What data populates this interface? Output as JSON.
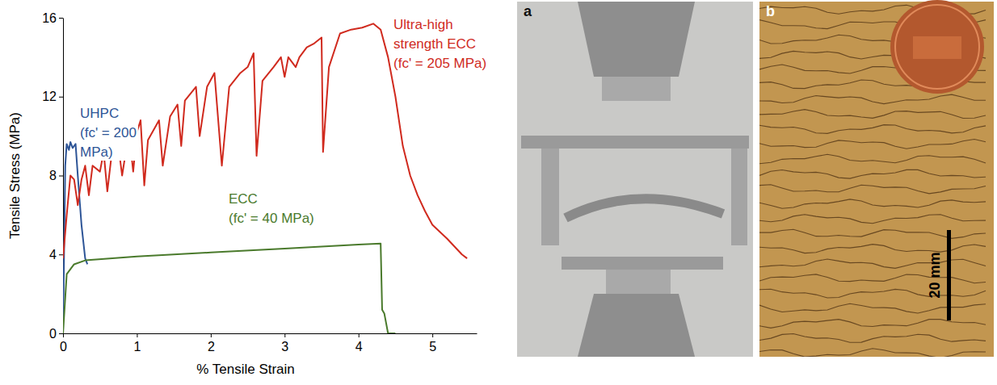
{
  "chart_data": {
    "type": "line",
    "x_label": "% Tensile Strain",
    "y_label": "Tensile Stress (MPa)",
    "xlim": [
      0,
      5.6
    ],
    "xticks": [
      0,
      1,
      2,
      3,
      4,
      5
    ],
    "ylim": [
      0,
      16
    ],
    "yticks": [
      0,
      4,
      8,
      12,
      16
    ],
    "series": [
      {
        "label": [
          "UHPC",
          "(fc' = 200",
          "MPa)"
        ],
        "color": "#2e5597",
        "x": [
          0,
          0.03,
          0.05,
          0.08,
          0.1,
          0.13,
          0.17,
          0.2,
          0.25,
          0.3,
          0.33
        ],
        "values": [
          0,
          8.5,
          9.6,
          9.3,
          9.7,
          9.4,
          9.6,
          8,
          5.5,
          3.8,
          3.5
        ]
      },
      {
        "label": [
          "ECC",
          "(fc' = 40 MPa)"
        ],
        "color": "#4a7a2c",
        "x": [
          0,
          0.05,
          0.15,
          0.3,
          1,
          2,
          3,
          4,
          4.3,
          4.32,
          4.35,
          4.4,
          4.5
        ],
        "values": [
          0,
          3,
          3.5,
          3.7,
          3.9,
          4.1,
          4.3,
          4.5,
          4.55,
          1.2,
          1,
          0,
          0
        ]
      },
      {
        "label": [
          "Ultra-high",
          "strength ECC",
          "(fc' = 205 MPa)"
        ],
        "color": "#d02a1e",
        "x": [
          0,
          0.05,
          0.1,
          0.15,
          0.2,
          0.25,
          0.3,
          0.35,
          0.4,
          0.5,
          0.55,
          0.6,
          0.65,
          0.75,
          0.8,
          0.85,
          0.9,
          0.95,
          1.0,
          1.05,
          1.1,
          1.15,
          1.3,
          1.35,
          1.45,
          1.55,
          1.6,
          1.65,
          1.8,
          1.85,
          1.95,
          2.05,
          2.15,
          2.25,
          2.4,
          2.5,
          2.58,
          2.62,
          2.7,
          2.85,
          2.95,
          3.0,
          3.05,
          3.15,
          3.2,
          3.3,
          3.4,
          3.5,
          3.52,
          3.6,
          3.75,
          3.9,
          4.05,
          4.2,
          4.3,
          4.4,
          4.5,
          4.6,
          4.7,
          4.8,
          4.9,
          5.0,
          5.2,
          5.4,
          5.47
        ],
        "values": [
          3.8,
          6,
          8,
          7.8,
          6.5,
          7.8,
          8.5,
          7,
          8.5,
          8.2,
          9.2,
          7.2,
          8.8,
          9.5,
          8,
          9.2,
          10,
          8.2,
          10.2,
          10.8,
          7.5,
          9.8,
          10.8,
          8.5,
          11,
          11.6,
          9.5,
          11.8,
          12.5,
          10,
          12.5,
          13.2,
          8.5,
          12.5,
          13.2,
          13.5,
          14.2,
          9,
          12.8,
          13.5,
          14,
          13,
          14,
          13.5,
          14,
          14.5,
          14.7,
          15,
          9.2,
          13.5,
          15.2,
          15.4,
          15.5,
          15.7,
          15.4,
          14,
          12,
          9.5,
          8,
          7,
          6.2,
          5.5,
          4.8,
          4,
          3.8
        ]
      }
    ]
  },
  "photos": [
    {
      "panel": "a"
    },
    {
      "panel": "b",
      "scale_bar": "20 mm"
    }
  ]
}
